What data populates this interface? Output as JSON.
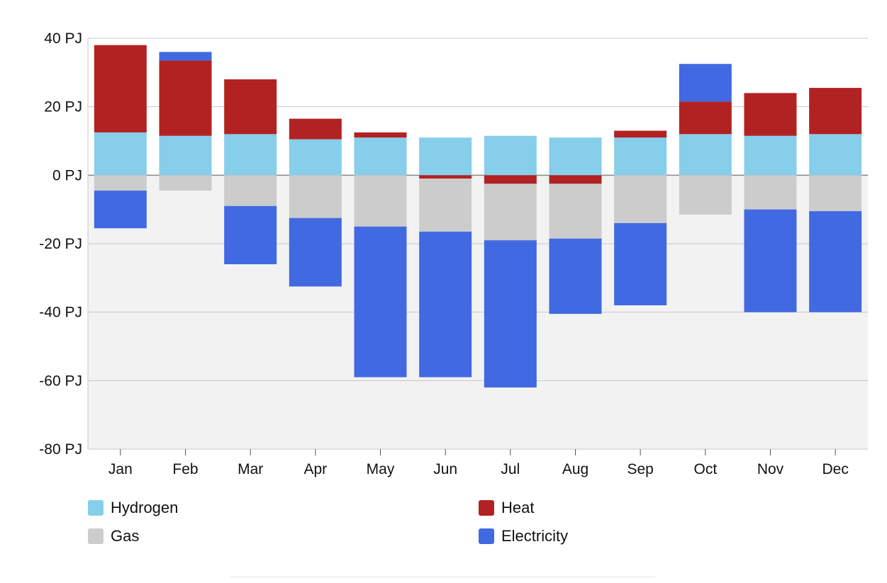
{
  "chart_data": {
    "type": "bar",
    "stacked": true,
    "title": "",
    "xlabel": "",
    "ylabel": "",
    "unit": "PJ",
    "ylim": [
      -80,
      40
    ],
    "yticks": [
      40,
      20,
      0,
      -20,
      -40,
      -60,
      -80
    ],
    "ytick_labels": [
      "40 PJ",
      "20 PJ",
      "0 PJ",
      "-20 PJ",
      "-40 PJ",
      "-60 PJ",
      "-80 PJ"
    ],
    "grid": true,
    "negative_region_shaded": true,
    "legend_position": "bottom",
    "categories": [
      "Jan",
      "Feb",
      "Mar",
      "Apr",
      "May",
      "Jun",
      "Jul",
      "Aug",
      "Sep",
      "Oct",
      "Nov",
      "Dec"
    ],
    "series": [
      {
        "name": "Hydrogen",
        "color": "#87ceeb",
        "values": [
          12.5,
          11.5,
          12,
          10.5,
          11,
          11,
          11.5,
          11,
          11,
          12,
          11.5,
          12
        ]
      },
      {
        "name": "Heat",
        "color": "#b22222",
        "values": [
          25.5,
          22,
          16,
          6,
          1.5,
          -1,
          -2.5,
          -2.5,
          2,
          9.5,
          12.5,
          13.5
        ]
      },
      {
        "name": "Gas",
        "color": "#cccccc",
        "values": [
          -4.5,
          -4.5,
          -9,
          -12.5,
          -15,
          -15.5,
          -16.5,
          -16,
          -14,
          -11.5,
          -10,
          -10.5
        ]
      },
      {
        "name": "Electricity",
        "color": "#4169e1",
        "values": [
          -11,
          2.5,
          -17,
          -20,
          -44,
          -42.5,
          -43,
          -22,
          -24,
          11,
          -30,
          -29.5
        ]
      }
    ]
  }
}
